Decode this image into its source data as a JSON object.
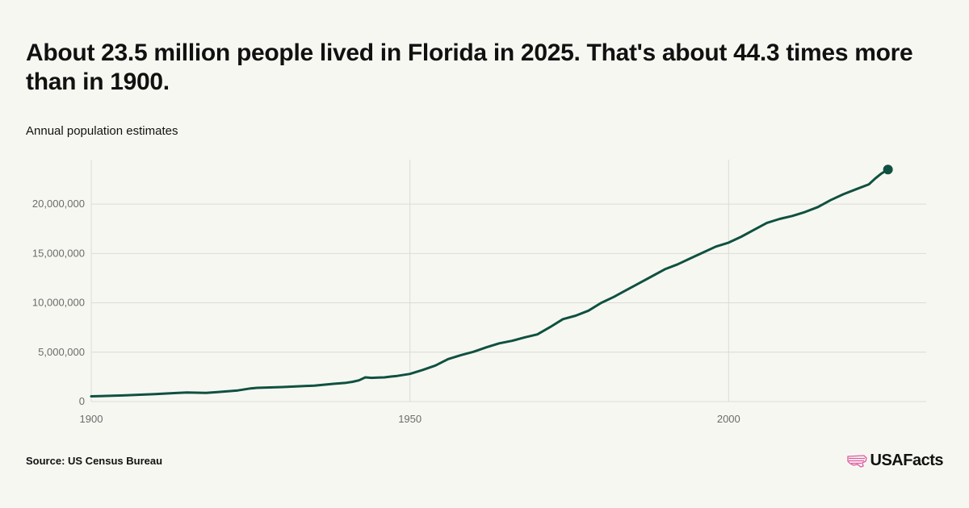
{
  "header": {
    "title": "About 23.5 million people lived in Florida in 2025. That's about 44.3 times more than in 1900.",
    "subtitle": "Annual population estimates"
  },
  "footer": {
    "source": "Source: US Census Bureau",
    "logo_text": "USAFacts",
    "logo_icon": "us-map-stripes-icon"
  },
  "colors": {
    "line": "#0f5140",
    "grid": "#dcdcd6",
    "background": "#f7f7f2",
    "logo_accent": "#e05aa2"
  },
  "chart_data": {
    "type": "line",
    "title": "About 23.5 million people lived in Florida in 2025. That's about 44.3 times more than in 1900.",
    "subtitle": "Annual population estimates",
    "xlabel": "",
    "ylabel": "",
    "xlim": [
      1900,
      2031
    ],
    "ylim": [
      0,
      24500000
    ],
    "x_ticks": [
      1900,
      1950,
      2000
    ],
    "x_tick_labels": [
      "1900",
      "1950",
      "2000"
    ],
    "y_ticks": [
      0,
      5000000,
      10000000,
      15000000,
      20000000
    ],
    "y_tick_labels": [
      "0",
      "5,000,000",
      "10,000,000",
      "15,000,000",
      "20,000,000"
    ],
    "grid": true,
    "end_marker": true,
    "series": [
      {
        "x": [
          1900,
          1905,
          1910,
          1913,
          1915,
          1918,
          1920,
          1923,
          1925,
          1926,
          1930,
          1935,
          1938,
          1940,
          1941,
          1942,
          1943,
          1944,
          1945,
          1946,
          1947,
          1948,
          1950,
          1952,
          1954,
          1956,
          1958,
          1960,
          1962,
          1964,
          1966,
          1968,
          1970,
          1972,
          1974,
          1976,
          1978,
          1980,
          1982,
          1984,
          1986,
          1988,
          1990,
          1992,
          1994,
          1996,
          1998,
          2000,
          2002,
          2004,
          2006,
          2008,
          2010,
          2012,
          2014,
          2016,
          2018,
          2020,
          2022,
          2023,
          2024,
          2025
        ],
        "y": [
          530000,
          620000,
          750000,
          860000,
          920000,
          880000,
          970000,
          1130000,
          1330000,
          1390000,
          1470000,
          1620000,
          1800000,
          1900000,
          2000000,
          2150000,
          2450000,
          2400000,
          2430000,
          2450000,
          2530000,
          2600000,
          2800000,
          3200000,
          3650000,
          4300000,
          4700000,
          5050000,
          5500000,
          5900000,
          6150000,
          6500000,
          6800000,
          7550000,
          8350000,
          8700000,
          9200000,
          10000000,
          10600000,
          11300000,
          12000000,
          12700000,
          13400000,
          13900000,
          14500000,
          15100000,
          15700000,
          16100000,
          16700000,
          17400000,
          18100000,
          18500000,
          18800000,
          19200000,
          19700000,
          20400000,
          21000000,
          21500000,
          22000000,
          22600000,
          23100000,
          23500000
        ]
      }
    ]
  }
}
